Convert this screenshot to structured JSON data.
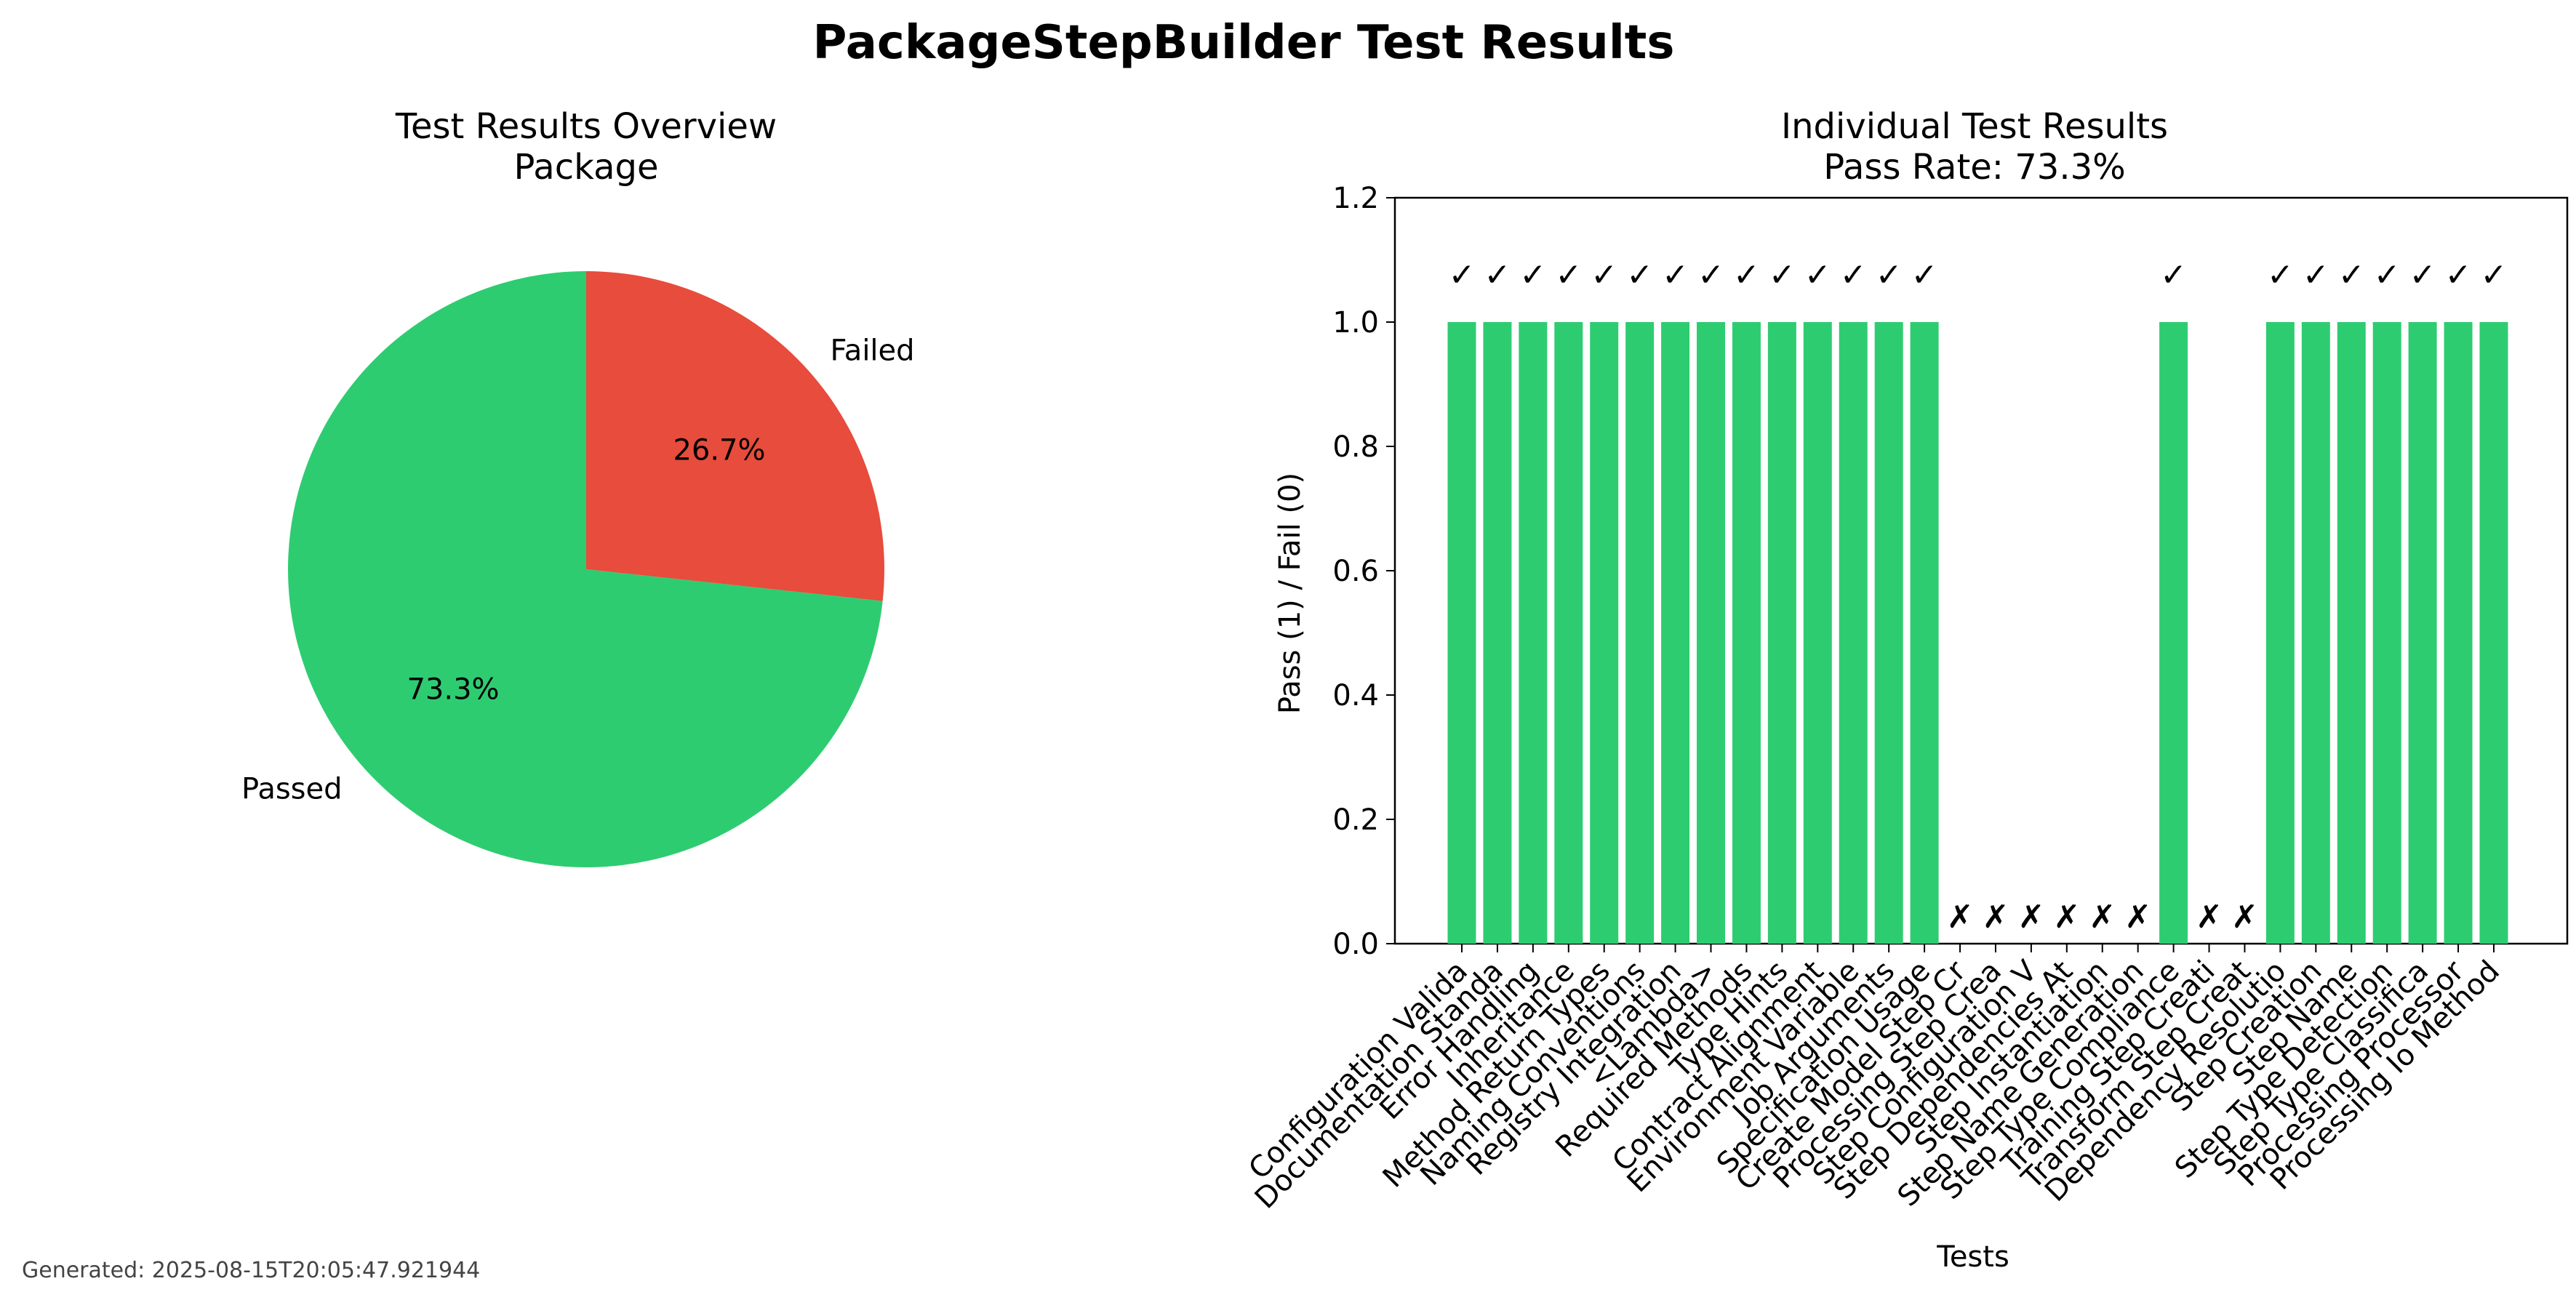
{
  "figure": {
    "title": "PackageStepBuilder Test Results",
    "generated": "Generated: 2025-08-15T20:05:47.921944"
  },
  "chart_data": [
    {
      "type": "pie",
      "title": "Test Results Overview\nPackage",
      "labels": [
        "Passed",
        "Failed"
      ],
      "values": [
        73.3,
        26.7
      ],
      "value_labels": [
        "73.3%",
        "26.7%"
      ],
      "colors": [
        "#2ecc71",
        "#e74c3c"
      ],
      "start_angle": "90 degrees, counterclockwise"
    },
    {
      "type": "bar",
      "title": "Individual Test Results\nPass Rate: 73.3%",
      "xlabel": "Tests",
      "ylabel": "Pass (1) / Fail (0)",
      "ylim": [
        0,
        1.2
      ],
      "yticks": [
        "0.0",
        "0.2",
        "0.4",
        "0.6",
        "0.8",
        "1.0",
        "1.2"
      ],
      "bar_color": "#2ecc71",
      "pass_mark": "✓",
      "fail_mark": "✗",
      "categories": [
        "Configuration Valida",
        "Documentation Standa",
        "Error Handling",
        "Inheritance",
        "Method Return Types",
        "Naming Conventions",
        "Registry Integration",
        "<Lambda>",
        "Required Methods",
        "Type Hints",
        "Contract Alignment",
        "Environment Variable",
        "Job Arguments",
        "Specification Usage",
        "Create Model Step Cr",
        "Processing Step Crea",
        "Step Configuration V",
        "Step Dependencies At",
        "Step Instantiation",
        "Step Name Generation",
        "Step Type Compliance",
        "Training Step Creati",
        "Transform Step Creat",
        "Dependency Resolutio",
        "Step Creation",
        "Step Name",
        "Step Type Detection",
        "Step Type Classifica",
        "Processing Processor",
        "Processing Io Method"
      ],
      "values": [
        1,
        1,
        1,
        1,
        1,
        1,
        1,
        1,
        1,
        1,
        1,
        1,
        1,
        1,
        0,
        0,
        0,
        0,
        0,
        0,
        1,
        0,
        0,
        1,
        1,
        1,
        1,
        1,
        1,
        1
      ]
    }
  ]
}
